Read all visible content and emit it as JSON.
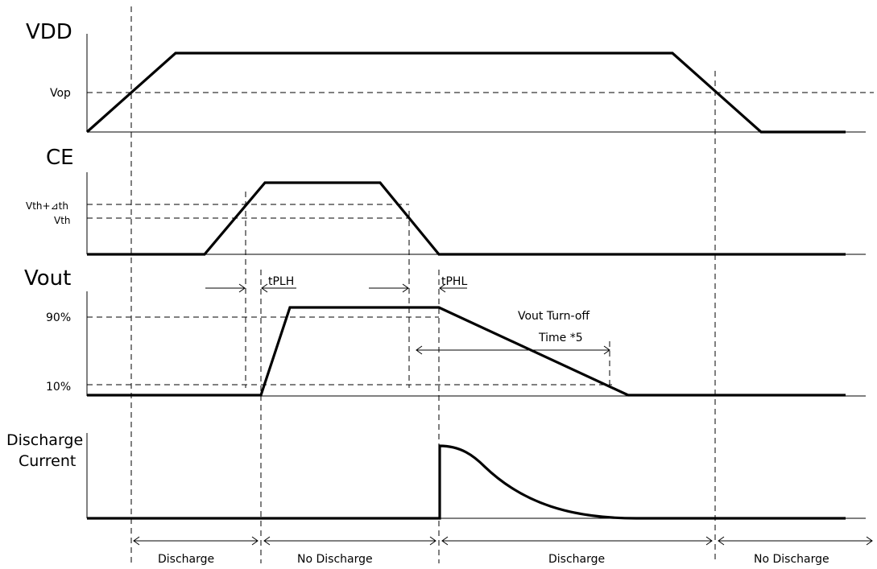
{
  "signals": {
    "vdd": "VDD",
    "ce": "CE",
    "vout": "Vout",
    "discharge_current_line1": "Discharge",
    "discharge_current_line2": "Current"
  },
  "levels": {
    "vop": "Vop",
    "vth_hyst": "Vth+⊿th",
    "vth": "Vth",
    "pct90": "90%",
    "pct10": "10%"
  },
  "timing": {
    "tplh": "tPLH",
    "tphl": "tPHL",
    "turnoff_line1": "Vout Turn-off",
    "turnoff_line2": "Time *5"
  },
  "phases": [
    "Discharge",
    "No  Discharge",
    "Discharge",
    "No  Discharge"
  ]
}
